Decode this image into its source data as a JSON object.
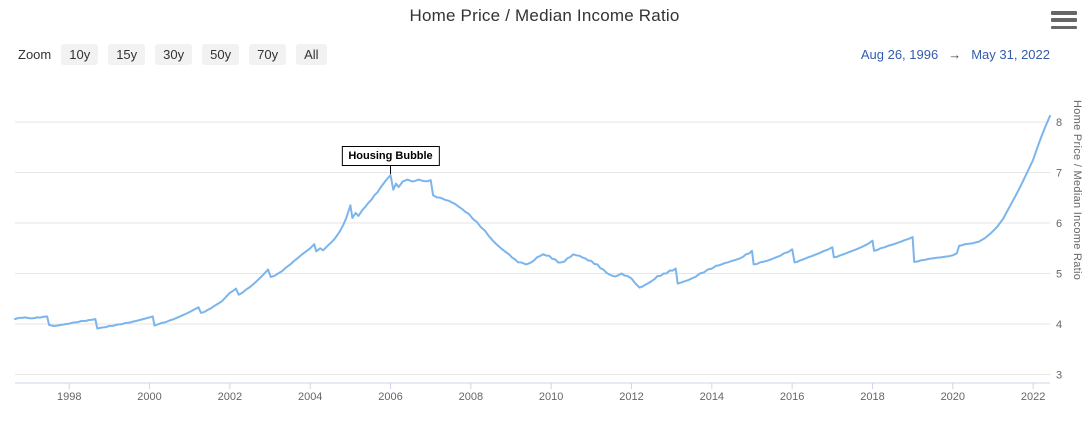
{
  "header": {
    "title": "Home Price / Median Income Ratio"
  },
  "toolbar": {
    "zoom_label": "Zoom",
    "range_buttons": [
      "10y",
      "15y",
      "30y",
      "50y",
      "70y",
      "All"
    ],
    "date_from": "Aug 26, 1996",
    "arrow": "→",
    "date_to": "May 31, 2022"
  },
  "icons": {
    "menu": "hamburger-menu-icon"
  },
  "colors": {
    "series_line": "#7cb5ec",
    "grid": "#e6e6e6",
    "axis_line": "#ccd6eb",
    "axis_label": "#666666",
    "title_text": "#333333",
    "button_bg": "#f2f2f2",
    "button_text": "#333333",
    "range_text": "#335cad",
    "menu_icon": "#666666",
    "annotation_border": "#000000"
  },
  "chart_data": {
    "type": "line",
    "title": "Home Price / Median Income Ratio",
    "ylabel": "Home Price / Median Income Ratio",
    "xlabel": "",
    "legend": "none",
    "grid": "horizontal",
    "x_range": [
      1996.65,
      2022.42
    ],
    "y_range": [
      3,
      8.4
    ],
    "x_ticks": [
      1998,
      2000,
      2002,
      2004,
      2006,
      2008,
      2010,
      2012,
      2014,
      2016,
      2018,
      2020,
      2022
    ],
    "y_ticks": [
      3,
      4,
      5,
      6,
      7,
      8
    ],
    "annotation": {
      "text": "Housing Bubble",
      "x": 2006.0,
      "y": 6.95
    },
    "noise_regions": [
      [
        1996.65,
        2000.05,
        0.012
      ],
      [
        2000.3,
        2004.08,
        0.012
      ],
      [
        2004.2,
        2005.9,
        0.018
      ],
      [
        2006.1,
        2008.6,
        0.02
      ],
      [
        2008.6,
        2010.9,
        0.032
      ],
      [
        2010.9,
        2013.1,
        0.028
      ],
      [
        2013.2,
        2016.0,
        0.02
      ],
      [
        2016.1,
        2019.0,
        0.011
      ],
      [
        2019.05,
        2020.45,
        0.008
      ]
    ],
    "series": [
      {
        "name": "Home Price / Median Income Ratio",
        "color": "#7cb5ec",
        "points": [
          [
            1996.65,
            4.1
          ],
          [
            1996.75,
            4.12
          ],
          [
            1996.9,
            4.13
          ],
          [
            1997.05,
            4.11
          ],
          [
            1997.2,
            4.13
          ],
          [
            1997.35,
            4.14
          ],
          [
            1997.45,
            4.15
          ],
          [
            1997.5,
            3.98
          ],
          [
            1997.62,
            3.96
          ],
          [
            1997.78,
            3.98
          ],
          [
            1997.92,
            4.0
          ],
          [
            1998.1,
            4.03
          ],
          [
            1998.3,
            4.06
          ],
          [
            1998.5,
            4.08
          ],
          [
            1998.65,
            4.1
          ],
          [
            1998.7,
            3.91
          ],
          [
            1998.82,
            3.93
          ],
          [
            1999.0,
            3.96
          ],
          [
            1999.2,
            3.99
          ],
          [
            1999.4,
            4.02
          ],
          [
            1999.6,
            4.05
          ],
          [
            1999.8,
            4.09
          ],
          [
            2000.0,
            4.13
          ],
          [
            2000.08,
            4.15
          ],
          [
            2000.12,
            3.97
          ],
          [
            2000.3,
            4.02
          ],
          [
            2000.5,
            4.07
          ],
          [
            2000.7,
            4.13
          ],
          [
            2000.9,
            4.2
          ],
          [
            2001.1,
            4.28
          ],
          [
            2001.22,
            4.33
          ],
          [
            2001.28,
            4.22
          ],
          [
            2001.45,
            4.28
          ],
          [
            2001.62,
            4.36
          ],
          [
            2001.8,
            4.45
          ],
          [
            2002.0,
            4.62
          ],
          [
            2002.15,
            4.7
          ],
          [
            2002.22,
            4.58
          ],
          [
            2002.4,
            4.68
          ],
          [
            2002.6,
            4.8
          ],
          [
            2002.8,
            4.95
          ],
          [
            2002.95,
            5.08
          ],
          [
            2003.02,
            4.93
          ],
          [
            2003.2,
            5.0
          ],
          [
            2003.4,
            5.12
          ],
          [
            2003.6,
            5.25
          ],
          [
            2003.8,
            5.38
          ],
          [
            2004.0,
            5.5
          ],
          [
            2004.1,
            5.58
          ],
          [
            2004.15,
            5.44
          ],
          [
            2004.25,
            5.5
          ],
          [
            2004.32,
            5.46
          ],
          [
            2004.45,
            5.56
          ],
          [
            2004.6,
            5.68
          ],
          [
            2004.75,
            5.85
          ],
          [
            2004.9,
            6.1
          ],
          [
            2005.0,
            6.35
          ],
          [
            2005.05,
            6.1
          ],
          [
            2005.13,
            6.2
          ],
          [
            2005.2,
            6.14
          ],
          [
            2005.3,
            6.26
          ],
          [
            2005.45,
            6.4
          ],
          [
            2005.6,
            6.55
          ],
          [
            2005.75,
            6.7
          ],
          [
            2005.88,
            6.84
          ],
          [
            2006.0,
            6.95
          ],
          [
            2006.07,
            6.66
          ],
          [
            2006.14,
            6.78
          ],
          [
            2006.2,
            6.71
          ],
          [
            2006.3,
            6.82
          ],
          [
            2006.42,
            6.86
          ],
          [
            2006.55,
            6.82
          ],
          [
            2006.7,
            6.86
          ],
          [
            2006.85,
            6.83
          ],
          [
            2007.0,
            6.85
          ],
          [
            2007.06,
            6.55
          ],
          [
            2007.25,
            6.5
          ],
          [
            2007.45,
            6.44
          ],
          [
            2007.6,
            6.38
          ],
          [
            2007.78,
            6.28
          ],
          [
            2007.95,
            6.18
          ],
          [
            2008.15,
            6.02
          ],
          [
            2008.35,
            5.85
          ],
          [
            2008.55,
            5.65
          ],
          [
            2008.75,
            5.5
          ],
          [
            2008.95,
            5.38
          ],
          [
            2009.1,
            5.28
          ],
          [
            2009.25,
            5.22
          ],
          [
            2009.38,
            5.18
          ],
          [
            2009.5,
            5.22
          ],
          [
            2009.65,
            5.32
          ],
          [
            2009.8,
            5.38
          ],
          [
            2009.95,
            5.35
          ],
          [
            2010.1,
            5.28
          ],
          [
            2010.25,
            5.22
          ],
          [
            2010.4,
            5.3
          ],
          [
            2010.55,
            5.38
          ],
          [
            2010.7,
            5.35
          ],
          [
            2010.85,
            5.3
          ],
          [
            2011.0,
            5.25
          ],
          [
            2011.15,
            5.18
          ],
          [
            2011.3,
            5.08
          ],
          [
            2011.45,
            4.98
          ],
          [
            2011.6,
            4.94
          ],
          [
            2011.75,
            5.0
          ],
          [
            2011.9,
            4.95
          ],
          [
            2012.0,
            4.9
          ],
          [
            2012.1,
            4.8
          ],
          [
            2012.2,
            4.72
          ],
          [
            2012.35,
            4.78
          ],
          [
            2012.5,
            4.85
          ],
          [
            2012.65,
            4.95
          ],
          [
            2012.8,
            5.0
          ],
          [
            2012.95,
            5.06
          ],
          [
            2013.1,
            5.1
          ],
          [
            2013.15,
            4.8
          ],
          [
            2013.3,
            4.84
          ],
          [
            2013.5,
            4.9
          ],
          [
            2013.7,
            5.0
          ],
          [
            2013.9,
            5.08
          ],
          [
            2014.1,
            5.15
          ],
          [
            2014.3,
            5.2
          ],
          [
            2014.5,
            5.25
          ],
          [
            2014.7,
            5.3
          ],
          [
            2014.85,
            5.38
          ],
          [
            2015.0,
            5.45
          ],
          [
            2015.04,
            5.18
          ],
          [
            2015.2,
            5.22
          ],
          [
            2015.4,
            5.26
          ],
          [
            2015.6,
            5.32
          ],
          [
            2015.8,
            5.4
          ],
          [
            2016.0,
            5.48
          ],
          [
            2016.06,
            5.22
          ],
          [
            2016.2,
            5.26
          ],
          [
            2016.4,
            5.32
          ],
          [
            2016.6,
            5.38
          ],
          [
            2016.8,
            5.45
          ],
          [
            2017.0,
            5.52
          ],
          [
            2017.04,
            5.32
          ],
          [
            2017.2,
            5.36
          ],
          [
            2017.4,
            5.42
          ],
          [
            2017.6,
            5.48
          ],
          [
            2017.8,
            5.55
          ],
          [
            2018.0,
            5.65
          ],
          [
            2018.04,
            5.45
          ],
          [
            2018.2,
            5.5
          ],
          [
            2018.4,
            5.55
          ],
          [
            2018.6,
            5.6
          ],
          [
            2018.8,
            5.66
          ],
          [
            2019.0,
            5.72
          ],
          [
            2019.04,
            5.23
          ],
          [
            2019.2,
            5.26
          ],
          [
            2019.4,
            5.29
          ],
          [
            2019.6,
            5.31
          ],
          [
            2019.8,
            5.33
          ],
          [
            2020.0,
            5.36
          ],
          [
            2020.1,
            5.4
          ],
          [
            2020.16,
            5.55
          ],
          [
            2020.3,
            5.58
          ],
          [
            2020.5,
            5.6
          ],
          [
            2020.65,
            5.63
          ],
          [
            2020.8,
            5.7
          ],
          [
            2020.95,
            5.8
          ],
          [
            2021.1,
            5.92
          ],
          [
            2021.25,
            6.08
          ],
          [
            2021.4,
            6.3
          ],
          [
            2021.55,
            6.52
          ],
          [
            2021.7,
            6.75
          ],
          [
            2021.85,
            7.0
          ],
          [
            2022.0,
            7.25
          ],
          [
            2022.1,
            7.48
          ],
          [
            2022.2,
            7.7
          ],
          [
            2022.3,
            7.9
          ],
          [
            2022.42,
            8.12
          ]
        ]
      }
    ]
  }
}
